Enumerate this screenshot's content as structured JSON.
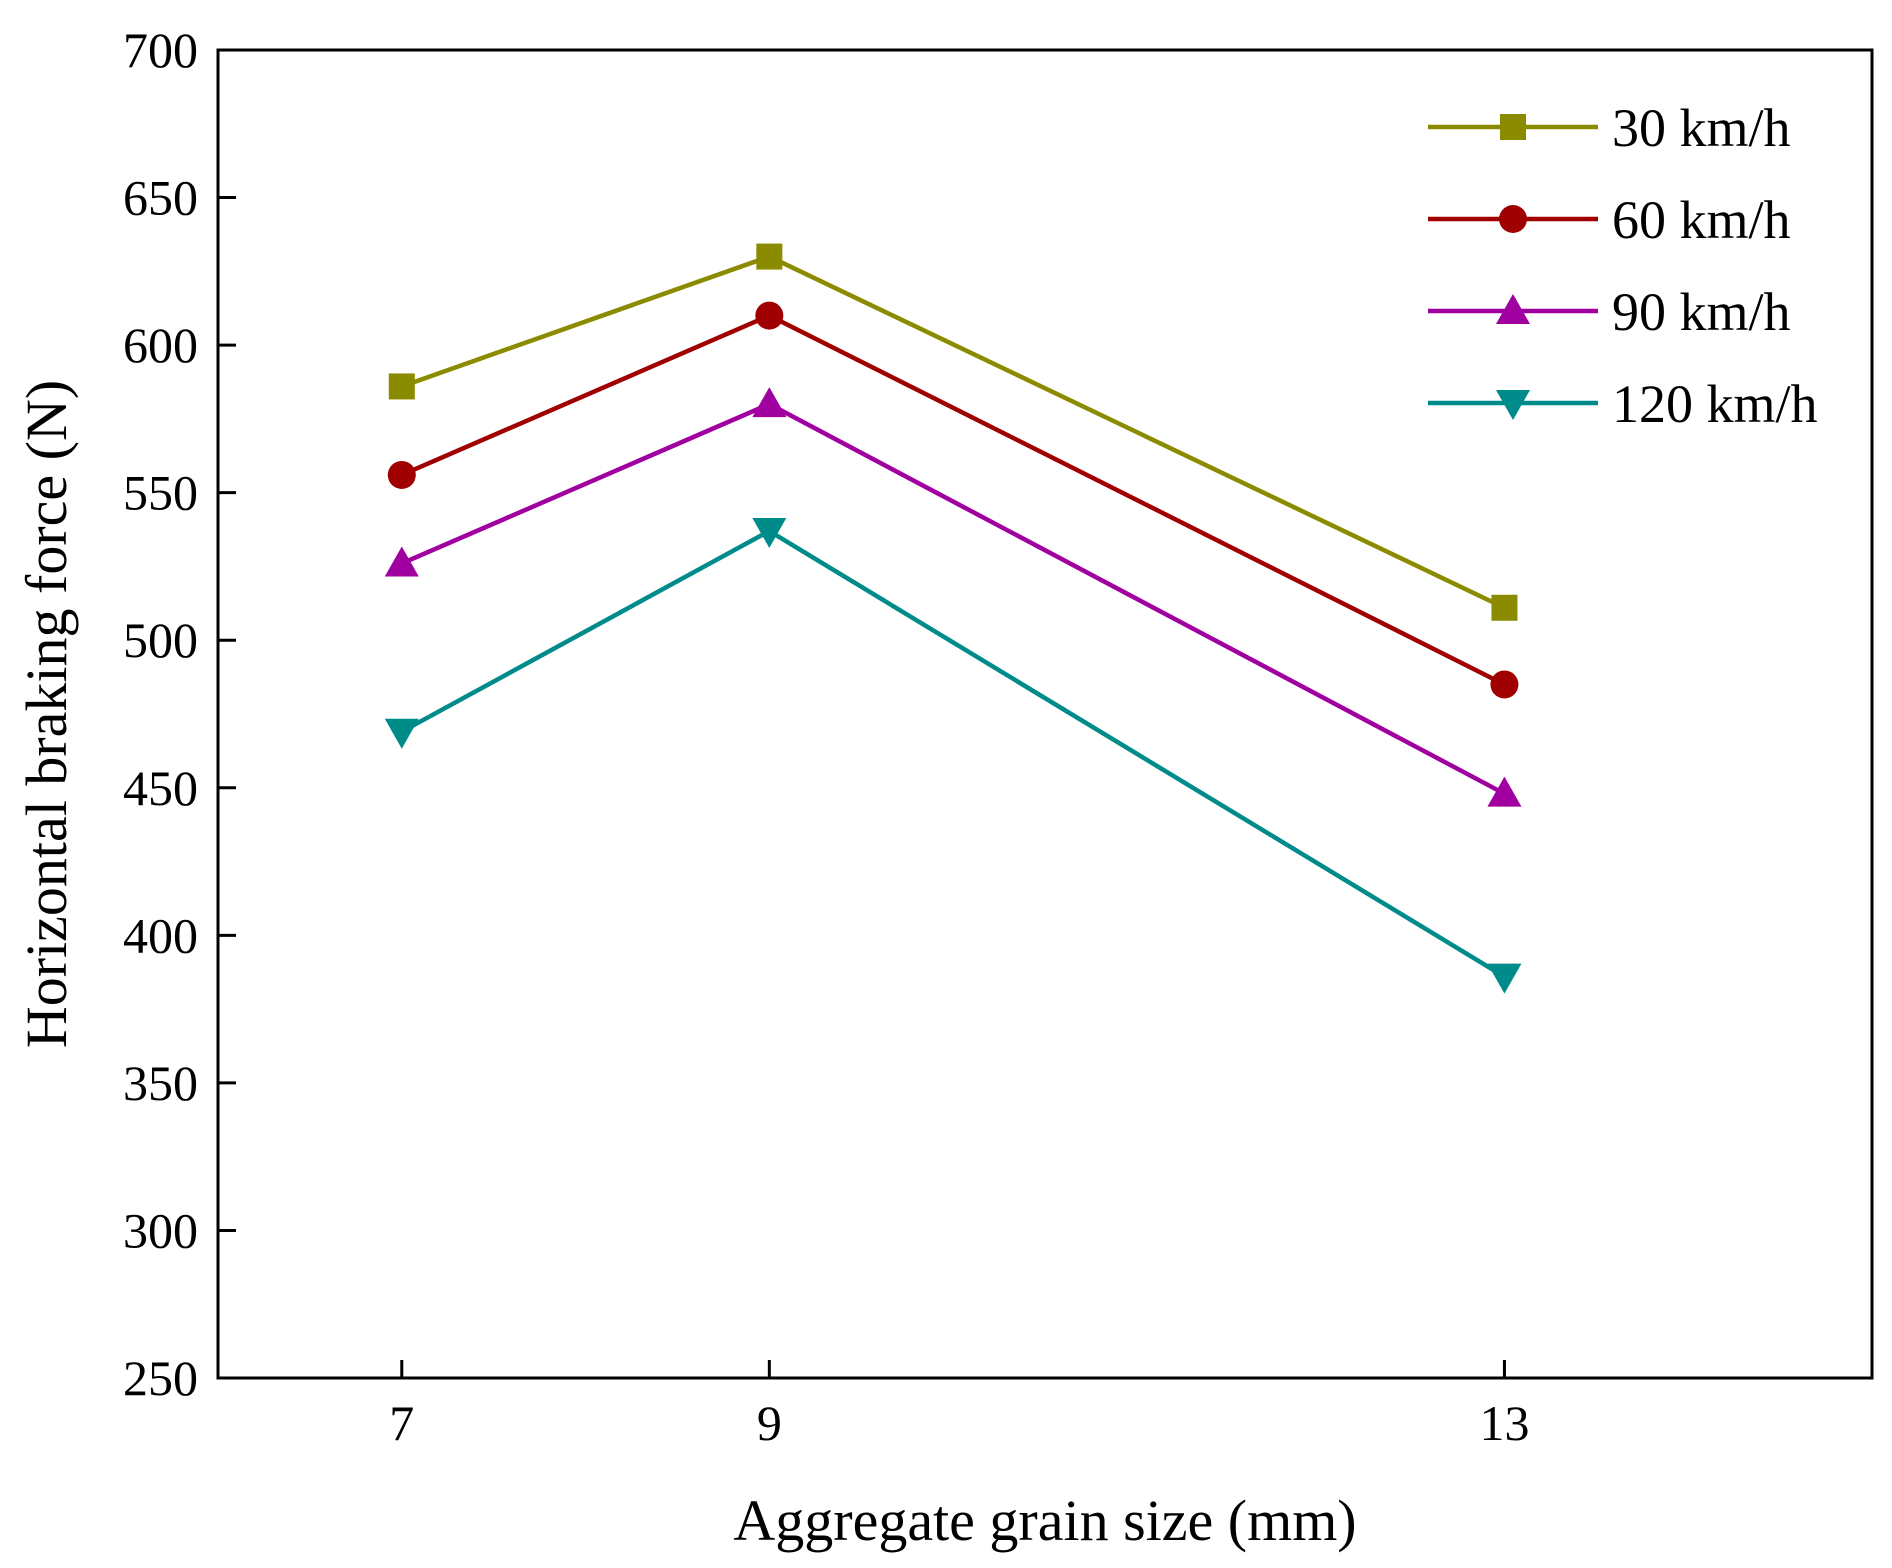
{
  "chart_data": {
    "type": "line",
    "title": "",
    "xlabel": "Aggregate grain size (mm)",
    "ylabel": "Horizontal braking force (N)",
    "x": [
      7,
      9,
      13
    ],
    "x_ticks": [
      "7",
      "9",
      "13"
    ],
    "xlim": [
      6,
      15
    ],
    "ylim": [
      250,
      700
    ],
    "y_ticks": [
      "250",
      "300",
      "350",
      "400",
      "450",
      "500",
      "550",
      "600",
      "650",
      "700"
    ],
    "grid": false,
    "legend_position": "top-right",
    "series": [
      {
        "name": "30 km/h",
        "values": [
          586,
          630,
          511
        ],
        "color": "#8b8b00",
        "marker": "square"
      },
      {
        "name": "60 km/h",
        "values": [
          556,
          610,
          485
        ],
        "color": "#a00000",
        "marker": "circle"
      },
      {
        "name": "90 km/h",
        "values": [
          526,
          580,
          448
        ],
        "color": "#a000a0",
        "marker": "triangle-up"
      },
      {
        "name": "120 km/h",
        "values": [
          469,
          537,
          386
        ],
        "color": "#008b8b",
        "marker": "triangle-down"
      }
    ]
  }
}
